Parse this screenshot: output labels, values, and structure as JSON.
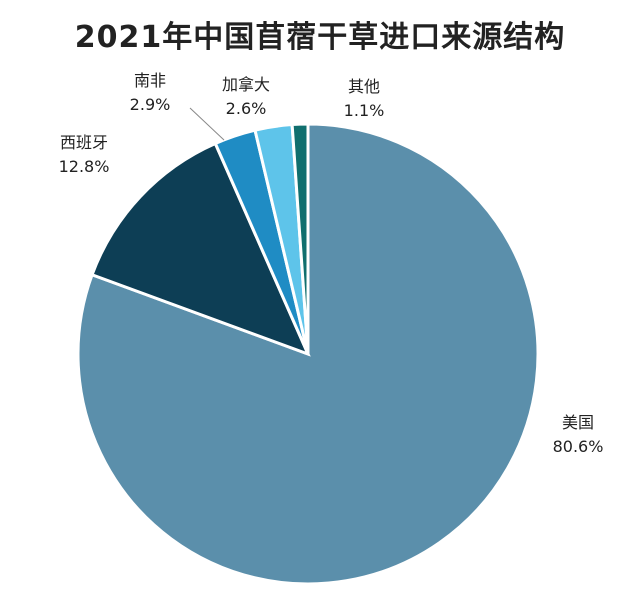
{
  "chart_data": {
    "type": "pie",
    "title": "2021年中国苜蓿干草进口来源结构",
    "slices": [
      {
        "label": "美国",
        "value": 80.6,
        "value_label": "80.6%",
        "color": "#5b8fab"
      },
      {
        "label": "西班牙",
        "value": 12.8,
        "value_label": "12.8%",
        "color": "#0d3e55"
      },
      {
        "label": "南非",
        "value": 2.9,
        "value_label": "2.9%",
        "color": "#1f8cc4"
      },
      {
        "label": "加拿大",
        "value": 2.6,
        "value_label": "2.6%",
        "color": "#5ec4ea"
      },
      {
        "label": "其他",
        "value": 1.1,
        "value_label": "1.1%",
        "color": "#106f6e"
      }
    ]
  }
}
